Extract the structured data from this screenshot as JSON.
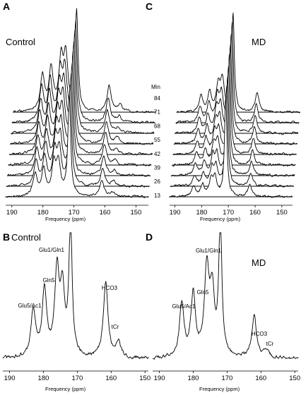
{
  "chart_data": [
    {
      "panel": "A",
      "type": "line",
      "condition_label": "Control",
      "xlabel": "Frequency (ppm)",
      "x_ticks": [
        190,
        180,
        170,
        160,
        150
      ],
      "x_reversed": true,
      "xlim": [
        192,
        146
      ],
      "stack_header": "Min",
      "peaks": [
        {
          "ppm": 182.5,
          "height_fraction": 0.22
        },
        {
          "ppm": 179.7,
          "height_fraction": 0.26
        },
        {
          "ppm": 176.5,
          "height_fraction": 0.3
        },
        {
          "ppm": 175.0,
          "height_fraction": 0.32
        },
        {
          "ppm": 171.5,
          "height_fraction": 1.0
        },
        {
          "ppm": 161.0,
          "height_fraction": 0.16
        },
        {
          "ppm": 157.5,
          "height_fraction": 0.04
        }
      ]
    },
    {
      "panel": "C",
      "type": "line",
      "condition_label": "MD",
      "xlabel": "Frequency (ppm)",
      "x_ticks": [
        190,
        180,
        170,
        160,
        150
      ],
      "x_reversed": true,
      "xlim": [
        192,
        146
      ],
      "stack_header": "Min",
      "time_labels": [
        "84",
        "71",
        "68",
        "55",
        "42",
        "39",
        "26",
        "13"
      ],
      "peaks": [
        {
          "ppm": 183.0,
          "height_fraction": 0.1
        },
        {
          "ppm": 179.7,
          "height_fraction": 0.12
        },
        {
          "ppm": 176.5,
          "height_fraction": 0.16
        },
        {
          "ppm": 175.0,
          "height_fraction": 0.18
        },
        {
          "ppm": 171.0,
          "height_fraction": 1.0
        },
        {
          "ppm": 162.0,
          "height_fraction": 0.12
        }
      ]
    },
    {
      "panel": "B",
      "type": "line",
      "condition_label": "Control",
      "xlabel": "Frequency (ppm)",
      "x_ticks": [
        190,
        180,
        170,
        160,
        150
      ],
      "x_reversed": true,
      "xlim": [
        192,
        149
      ],
      "annotations": [
        {
          "text": "Glu1/Gln1",
          "ppm": 176.0
        },
        {
          "text": "Gln5",
          "ppm": 179.6
        },
        {
          "text": "Glu5/Ac1",
          "ppm": 183.0
        },
        {
          "text": "HCO3",
          "ppm": 161.5
        },
        {
          "text": "tCr",
          "ppm": 158.0
        }
      ],
      "peaks": [
        {
          "ppm": 183.0,
          "height_fraction": 0.34
        },
        {
          "ppm": 179.7,
          "height_fraction": 0.48
        },
        {
          "ppm": 176.0,
          "height_fraction": 0.6
        },
        {
          "ppm": 174.4,
          "height_fraction": 0.45
        },
        {
          "ppm": 172.0,
          "height_fraction": 1.0
        },
        {
          "ppm": 161.6,
          "height_fraction": 0.54
        },
        {
          "ppm": 157.8,
          "height_fraction": 0.11
        }
      ]
    },
    {
      "panel": "D",
      "type": "line",
      "condition_label": "MD",
      "xlabel": "Frequency (ppm)",
      "x_ticks": [
        190,
        180,
        170,
        160,
        150
      ],
      "x_reversed": true,
      "xlim": [
        192,
        149
      ],
      "annotations": [
        {
          "text": "Glu1/Gln1",
          "ppm": 176.0
        },
        {
          "text": "Gln5",
          "ppm": 180.0
        },
        {
          "text": "Glu5/Ac1",
          "ppm": 183.5
        },
        {
          "text": "HCO3",
          "ppm": 162.0
        },
        {
          "text": "tCr",
          "ppm": 158.0
        }
      ],
      "peaks": [
        {
          "ppm": 183.4,
          "height_fraction": 0.38
        },
        {
          "ppm": 180.0,
          "height_fraction": 0.45
        },
        {
          "ppm": 176.0,
          "height_fraction": 0.62
        },
        {
          "ppm": 174.4,
          "height_fraction": 0.45
        },
        {
          "ppm": 172.0,
          "height_fraction": 1.0
        },
        {
          "ppm": 162.0,
          "height_fraction": 0.3
        },
        {
          "ppm": 158.5,
          "height_fraction": 0.06
        }
      ]
    }
  ],
  "panel_labels": {
    "A": "A",
    "B": "B",
    "C": "C",
    "D": "D"
  },
  "colors": {
    "line": "#000000",
    "background": "#ffffff"
  }
}
